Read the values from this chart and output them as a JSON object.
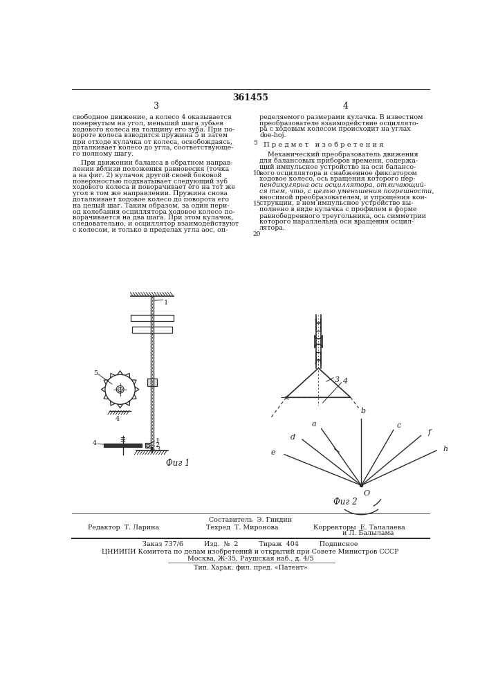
{
  "page_number": "361455",
  "col_left_num": "3",
  "col_right_num": "4",
  "line_number_5": "5",
  "line_number_10": "10",
  "line_number_15": "15",
  "line_number_20": "20",
  "left_col_text": [
    "свободное движение, а колесо 4 оказывается",
    "повернутым на угол, меньший шага зубьев",
    "ходового колеса на толщину его зуба. При по-",
    "вороте колеса взводится пружина 5 и затем",
    "при отходе кулачка от колеса, освобождаясь,",
    "доталкивает колесо до угла, соответствующе-",
    "го полному шагу.",
    "",
    "    При движении баланса в обратном направ-",
    "лении вблизи положения равновесия (точка",
    "а на фиг. 2) кулачок другой своей боковой",
    "поверхностью подхватывает следующий зуб",
    "ходового колеса и поворачивает его на тот же",
    "угол в том же направлении. Пружина снова",
    "доталкивает ходовое колесо до поворота его",
    "на целый шаг. Таким образом, за один пери-",
    "од колебания осциллятора ходовое колесо по-",
    "ворачивается на два шага. При этом кулачок,",
    "следовательно, и осциллятор взаимодействуют",
    "с колесом, и только в пределах угла aoc, оп-"
  ],
  "right_col_text_1": [
    "ределяемого размерами кулачка. В известном",
    "преобразователе взаимодействие осциллято-",
    "ра с ходовым колесом происходит на углах",
    "doe-hoj."
  ],
  "predmet_title": "П р е д м е т   и з о б р е т е н и я",
  "right_col_text_2": [
    "    Механический преобразователь движения",
    "для балансовых приборов времени, содержа-",
    "щий импульсное устройство на оси балансо-",
    "вого осциллятора и снабженное фиксатором",
    "ходовое колесо, ось вращения которого пер-",
    "пендикулярна оси осциллятора, отличающий-",
    "ся тем, что, с целью уменьшения погрешности,",
    "вносимой преобразователем, и упрощения кон-",
    "струкции, в нем импульсное устройство вы-",
    "полнено в виде кулачка с профилем в форме",
    "равнобедренного треугольника, ось симметрии",
    "которого параллельна оси вращения осцил-",
    "лятора."
  ],
  "italic_lines": [
    5,
    6
  ],
  "fig1_label": "Фиг 1",
  "fig2_label": "Фиг 2",
  "editor_line": "Редактор  Т. Ларина",
  "tech_line": "Техред  Т. Миронова",
  "corrector_line1": "Корректоры  Е. Талалаева",
  "corrector_line2": "              и Л. Балылама",
  "compositor_line": "Составитель  Э. Гиндин",
  "order_line": "Заказ 737/6          Изд.  №  2          Тираж  404          Подписное",
  "org_line": "ЦНИИПИ Комитета по делам изобретений и открытий при Совете Министров СССР",
  "address_line": "Москва, Ж-35, Раушская наб., д. 4/5",
  "print_line": "Тип. Харьк. фил. пред. «Патент»",
  "bg_color": "#ffffff",
  "text_color": "#1a1a1a",
  "line_color": "#2a2a2a"
}
